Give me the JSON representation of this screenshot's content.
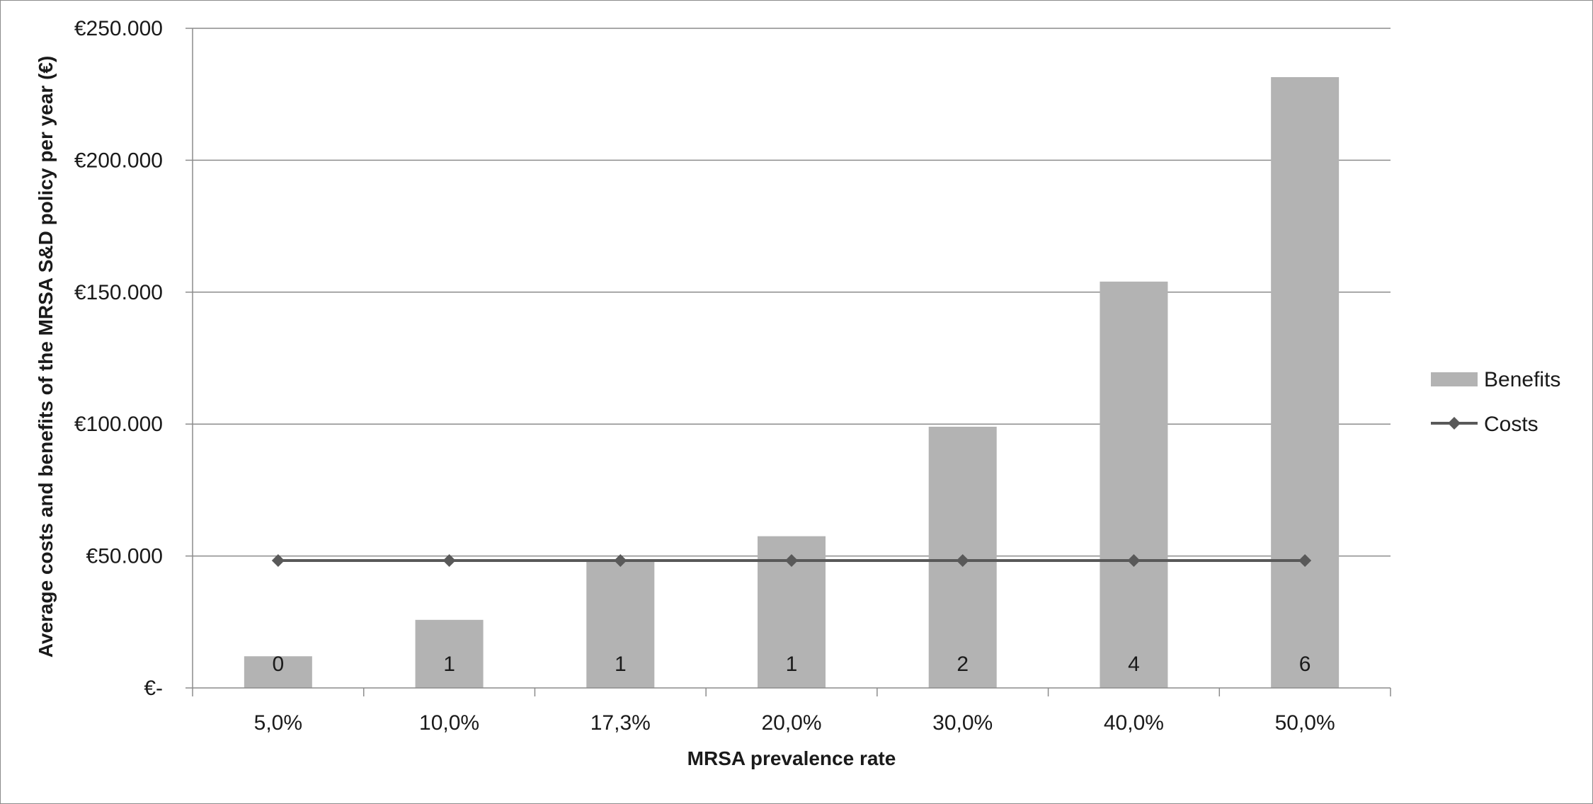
{
  "chart_data": {
    "type": "bar",
    "title": "",
    "xlabel": "MRSA prevalence rate",
    "ylabel": "Average costs and benefits of the MRSA S&D policy per  year (€)",
    "categories": [
      "5,0%",
      "10,0%",
      "17,3%",
      "20,0%",
      "30,0%",
      "40,0%",
      "50,0%"
    ],
    "ylim": [
      0,
      250000
    ],
    "yticks": [
      0,
      50000,
      100000,
      150000,
      200000,
      250000
    ],
    "ytick_labels": [
      "€-",
      "€50.000",
      "€100.000",
      "€150.000",
      "€200.000",
      "€250.000"
    ],
    "grid": true,
    "legend_position": "right",
    "series": [
      {
        "name": "Benefits",
        "type": "bar",
        "color": "#b3b3b3",
        "values": [
          12000,
          25800,
          48500,
          57500,
          99000,
          154000,
          231500
        ],
        "data_labels": [
          "0",
          "1",
          "1",
          "1",
          "2",
          "4",
          "6"
        ]
      },
      {
        "name": "Costs",
        "type": "line",
        "marker": "diamond",
        "color": "#595959",
        "values": [
          48300,
          48300,
          48300,
          48300,
          48300,
          48300,
          48300
        ]
      }
    ]
  }
}
